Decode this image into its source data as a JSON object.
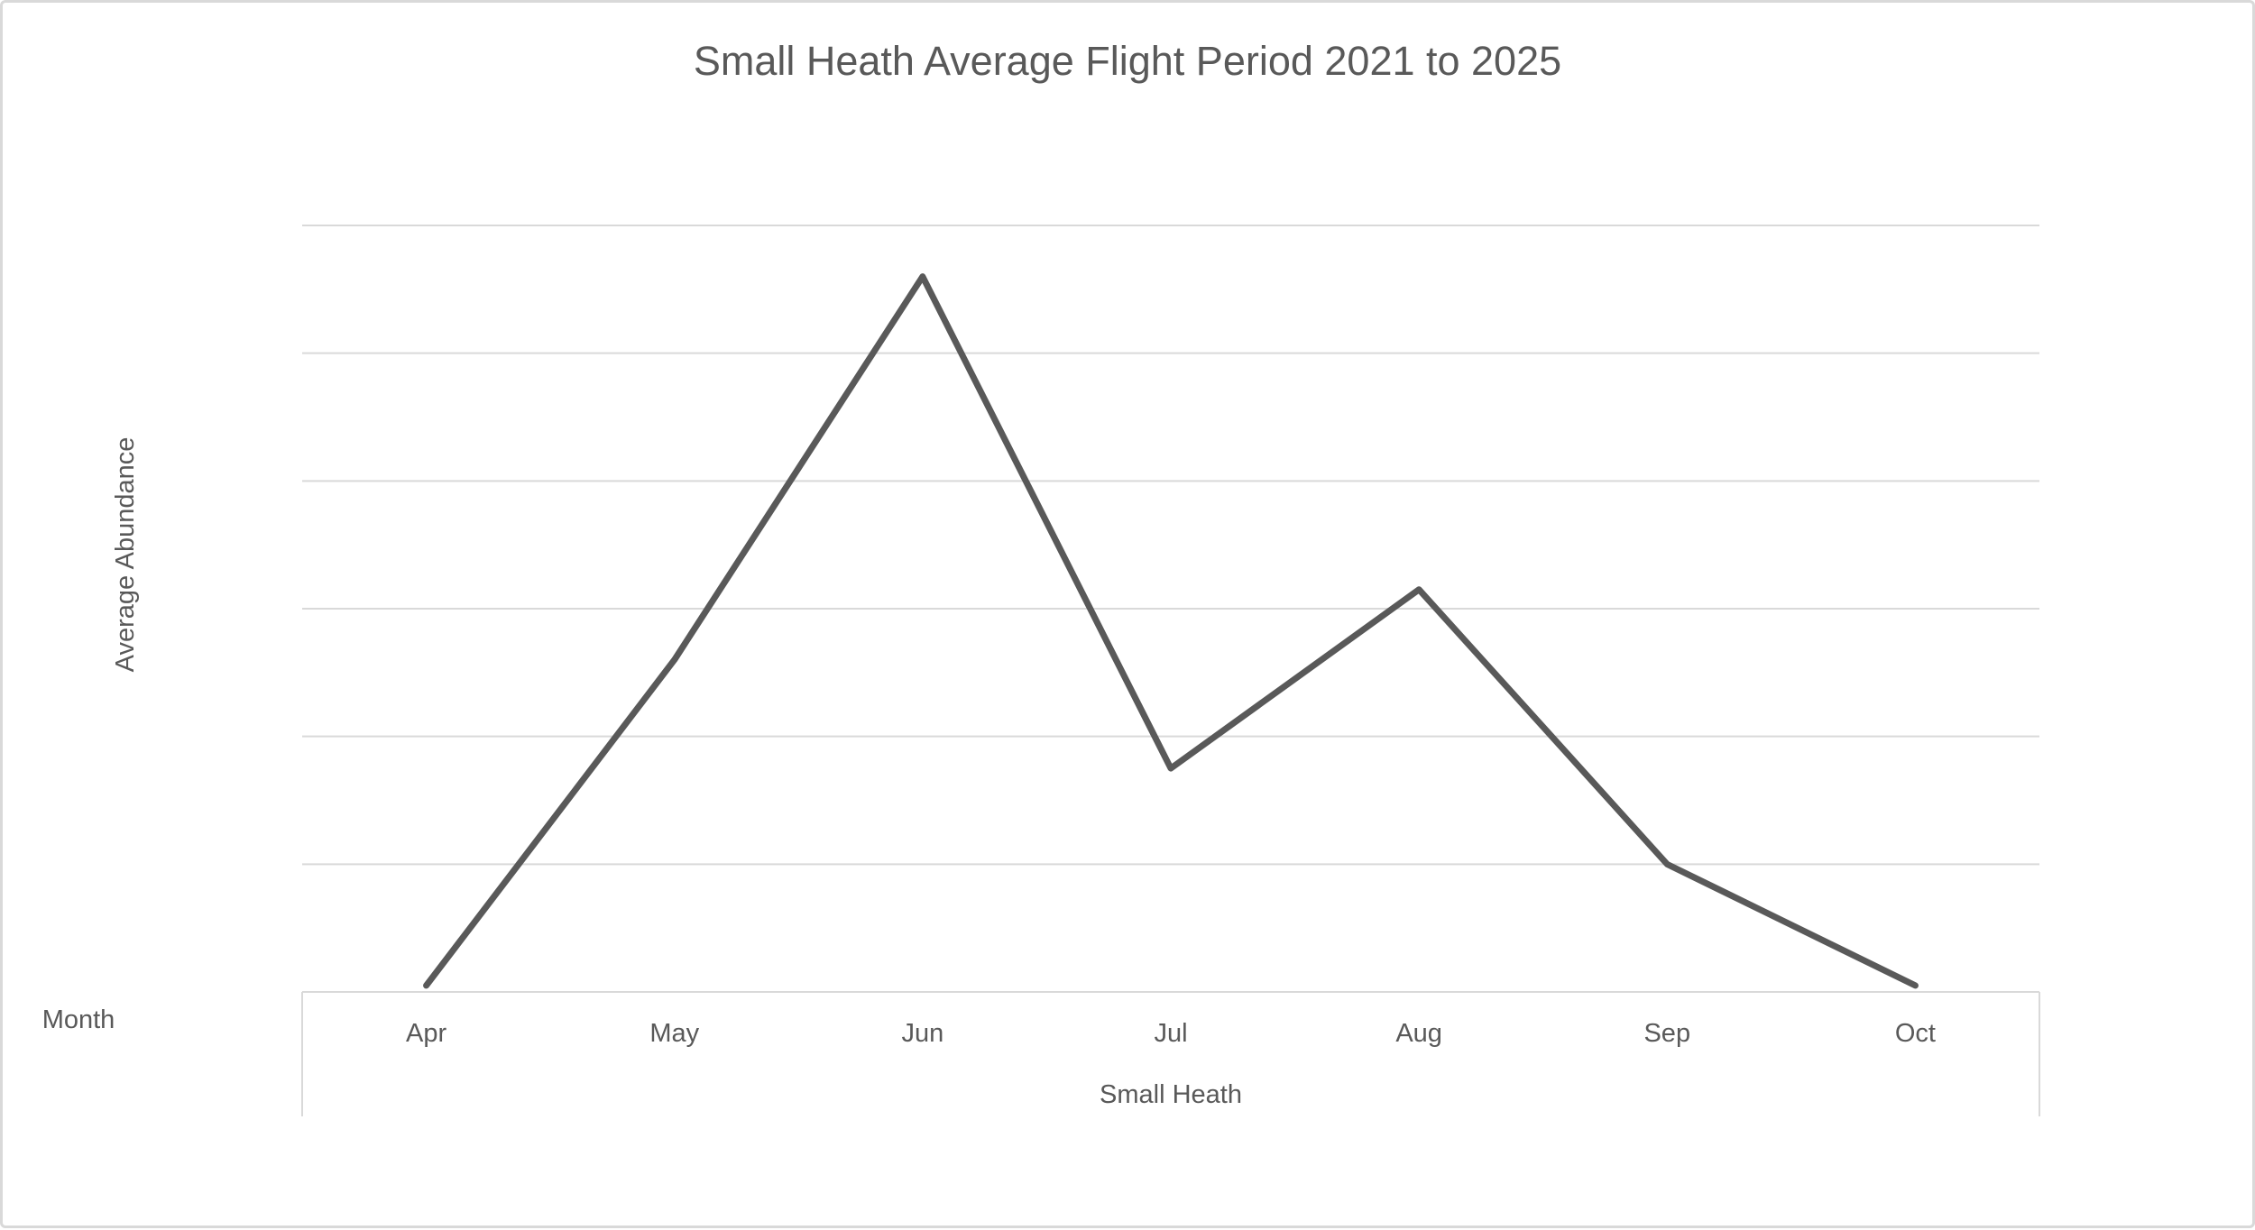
{
  "page": {
    "background_color": "#ffffff",
    "border_color": "#d9d9d9"
  },
  "chart_data": {
    "type": "line",
    "title": "Small Heath Average Flight Period 2021 to 2025",
    "ylabel": "Average Abundance",
    "xlabel": "Small Heath",
    "axis_field_label": "Month",
    "categories": [
      "Apr",
      "May",
      "Jun",
      "Jul",
      "Aug",
      "Sep",
      "Oct"
    ],
    "series": [
      {
        "name": "Small Heath",
        "values": [
          0.05,
          2.6,
          5.6,
          1.75,
          3.15,
          1.0,
          0.05
        ]
      }
    ],
    "ylim": [
      0,
      6
    ],
    "gridline_interval": 1,
    "grid": true,
    "y_tick_labels_visible": false,
    "legend_position": "none",
    "line_color": "#595959",
    "gridline_color": "#d9d9d9",
    "text_color": "#595959"
  }
}
